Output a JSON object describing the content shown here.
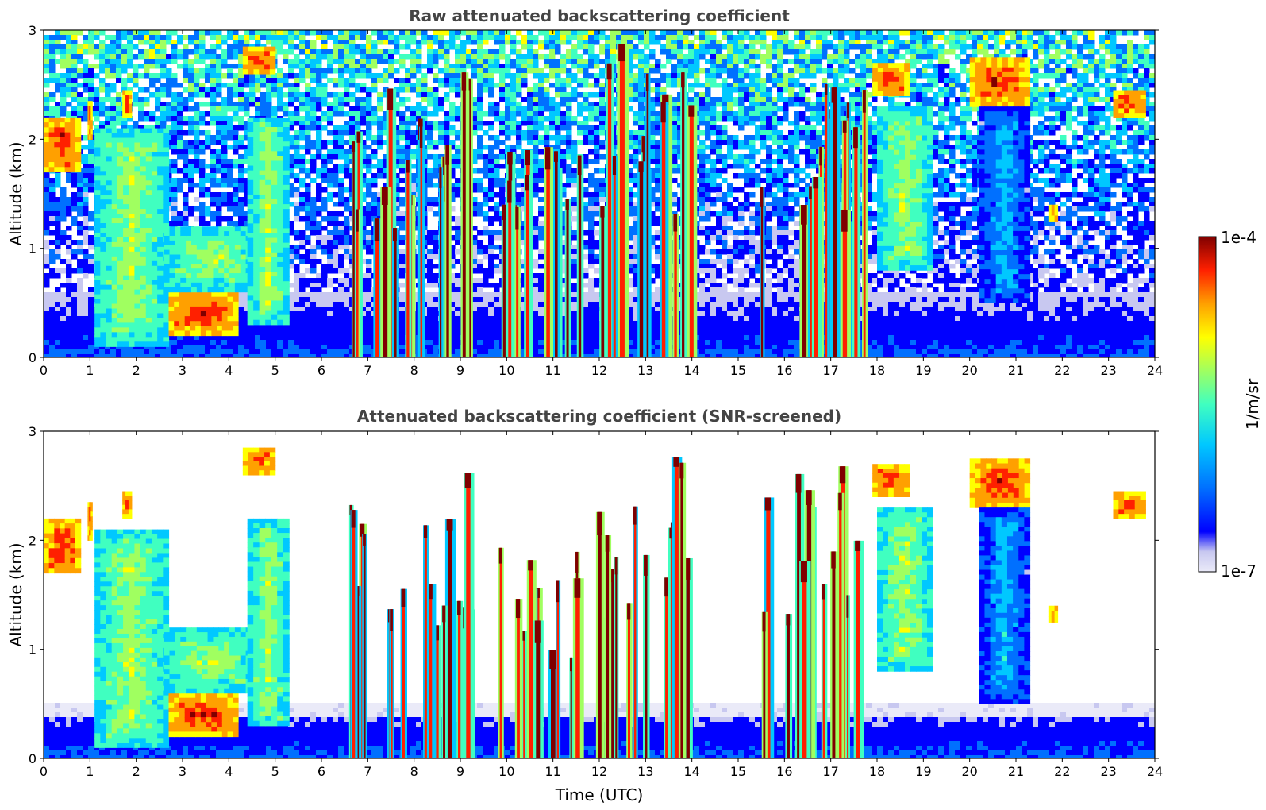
{
  "chart_data": [
    {
      "type": "heatmap",
      "title": "Raw attenuated backscattering coefficient",
      "xlabel": "",
      "ylabel": "Altitude (km)",
      "xlim": [
        0,
        24
      ],
      "ylim": [
        0,
        3
      ],
      "xticks": [
        "0",
        "1",
        "2",
        "3",
        "4",
        "5",
        "6",
        "7",
        "8",
        "9",
        "10",
        "11",
        "12",
        "13",
        "14",
        "15",
        "16",
        "17",
        "18",
        "19",
        "20",
        "21",
        "22",
        "23",
        "24"
      ],
      "yticks": [
        "0",
        "1",
        "2",
        "3"
      ],
      "colormap": "jet",
      "log_color_scale": true,
      "noise": "high",
      "boundary_layer_top_km": 0.6,
      "features": [
        {
          "x": [
            0.0,
            0.8
          ],
          "y": [
            1.7,
            2.2
          ],
          "level": "high",
          "kind": "layer"
        },
        {
          "x": [
            0.95,
            1.05
          ],
          "y": [
            2.0,
            2.35
          ],
          "level": "high",
          "kind": "layer"
        },
        {
          "x": [
            1.1,
            2.7
          ],
          "y": [
            0.1,
            2.1
          ],
          "level": "mid",
          "kind": "precip"
        },
        {
          "x": [
            1.7,
            1.9
          ],
          "y": [
            2.2,
            2.45
          ],
          "level": "high",
          "kind": "layer"
        },
        {
          "x": [
            2.7,
            4.2
          ],
          "y": [
            0.2,
            0.6
          ],
          "level": "high",
          "kind": "layer"
        },
        {
          "x": [
            2.6,
            4.6
          ],
          "y": [
            0.6,
            1.2
          ],
          "level": "mid",
          "kind": "layer"
        },
        {
          "x": [
            4.3,
            5.0
          ],
          "y": [
            2.6,
            2.85
          ],
          "level": "high",
          "kind": "layer"
        },
        {
          "x": [
            4.4,
            5.3
          ],
          "y": [
            0.3,
            2.2
          ],
          "level": "mid",
          "kind": "precip"
        },
        {
          "x": [
            6.5,
            7.6
          ],
          "y": [
            0.0,
            2.5
          ],
          "level": "high",
          "kind": "streaks"
        },
        {
          "x": [
            7.7,
            9.2
          ],
          "y": [
            0.0,
            2.8
          ],
          "level": "high",
          "kind": "streaks"
        },
        {
          "x": [
            9.8,
            11.6
          ],
          "y": [
            0.0,
            2.2
          ],
          "level": "high",
          "kind": "streaks"
        },
        {
          "x": [
            11.9,
            14.0
          ],
          "y": [
            0.0,
            2.9
          ],
          "level": "high",
          "kind": "streaks"
        },
        {
          "x": [
            15.4,
            17.7
          ],
          "y": [
            0.0,
            2.7
          ],
          "level": "high",
          "kind": "streaks"
        },
        {
          "x": [
            17.9,
            18.7
          ],
          "y": [
            2.4,
            2.7
          ],
          "level": "high",
          "kind": "layer"
        },
        {
          "x": [
            18.0,
            19.2
          ],
          "y": [
            0.8,
            2.3
          ],
          "level": "mid",
          "kind": "precip"
        },
        {
          "x": [
            20.0,
            21.3
          ],
          "y": [
            2.3,
            2.75
          ],
          "level": "high",
          "kind": "layer"
        },
        {
          "x": [
            20.2,
            21.3
          ],
          "y": [
            0.5,
            2.3
          ],
          "level": "low",
          "kind": "precip"
        },
        {
          "x": [
            21.7,
            21.9
          ],
          "y": [
            1.25,
            1.4
          ],
          "level": "high",
          "kind": "layer"
        },
        {
          "x": [
            23.1,
            23.8
          ],
          "y": [
            2.2,
            2.45
          ],
          "level": "high",
          "kind": "layer"
        }
      ]
    },
    {
      "type": "heatmap",
      "title": "Attenuated backscattering coefficient (SNR-screened)",
      "xlabel": "Time (UTC)",
      "ylabel": "Altitude (km)",
      "xlim": [
        0,
        24
      ],
      "ylim": [
        0,
        3
      ],
      "xticks": [
        "0",
        "1",
        "2",
        "3",
        "4",
        "5",
        "6",
        "7",
        "8",
        "9",
        "10",
        "11",
        "12",
        "13",
        "14",
        "15",
        "16",
        "17",
        "18",
        "19",
        "20",
        "21",
        "22",
        "23",
        "24"
      ],
      "yticks": [
        "0",
        "1",
        "2",
        "3"
      ],
      "colormap": "jet",
      "log_color_scale": true,
      "noise": "screened",
      "boundary_layer_top_km": 0.5,
      "features": [
        {
          "x": [
            0.0,
            0.8
          ],
          "y": [
            1.7,
            2.2
          ],
          "level": "high",
          "kind": "layer"
        },
        {
          "x": [
            0.95,
            1.05
          ],
          "y": [
            2.0,
            2.35
          ],
          "level": "high",
          "kind": "layer"
        },
        {
          "x": [
            1.1,
            2.7
          ],
          "y": [
            0.1,
            2.1
          ],
          "level": "mid",
          "kind": "precip"
        },
        {
          "x": [
            1.7,
            1.9
          ],
          "y": [
            2.2,
            2.45
          ],
          "level": "high",
          "kind": "layer"
        },
        {
          "x": [
            2.7,
            4.2
          ],
          "y": [
            0.2,
            0.6
          ],
          "level": "high",
          "kind": "layer"
        },
        {
          "x": [
            2.6,
            4.6
          ],
          "y": [
            0.6,
            1.2
          ],
          "level": "mid",
          "kind": "layer"
        },
        {
          "x": [
            4.3,
            5.0
          ],
          "y": [
            2.6,
            2.85
          ],
          "level": "high",
          "kind": "layer"
        },
        {
          "x": [
            4.4,
            5.3
          ],
          "y": [
            0.3,
            2.2
          ],
          "level": "mid",
          "kind": "precip"
        },
        {
          "x": [
            6.5,
            7.6
          ],
          "y": [
            0.0,
            2.5
          ],
          "level": "high",
          "kind": "streaks"
        },
        {
          "x": [
            7.7,
            9.2
          ],
          "y": [
            0.0,
            2.8
          ],
          "level": "high",
          "kind": "streaks"
        },
        {
          "x": [
            9.8,
            11.6
          ],
          "y": [
            0.0,
            2.2
          ],
          "level": "high",
          "kind": "streaks"
        },
        {
          "x": [
            11.9,
            14.0
          ],
          "y": [
            0.0,
            2.9
          ],
          "level": "high",
          "kind": "streaks"
        },
        {
          "x": [
            15.4,
            17.7
          ],
          "y": [
            0.0,
            2.7
          ],
          "level": "high",
          "kind": "streaks"
        },
        {
          "x": [
            17.9,
            18.7
          ],
          "y": [
            2.4,
            2.7
          ],
          "level": "high",
          "kind": "layer"
        },
        {
          "x": [
            18.0,
            19.2
          ],
          "y": [
            0.8,
            2.3
          ],
          "level": "mid",
          "kind": "precip"
        },
        {
          "x": [
            20.0,
            21.3
          ],
          "y": [
            2.3,
            2.75
          ],
          "level": "high",
          "kind": "layer"
        },
        {
          "x": [
            20.2,
            21.3
          ],
          "y": [
            0.5,
            2.3
          ],
          "level": "low",
          "kind": "precip"
        },
        {
          "x": [
            21.7,
            21.9
          ],
          "y": [
            1.25,
            1.4
          ],
          "level": "high",
          "kind": "layer"
        },
        {
          "x": [
            23.1,
            23.8
          ],
          "y": [
            2.2,
            2.45
          ],
          "level": "high",
          "kind": "layer"
        }
      ]
    }
  ],
  "colorbar": {
    "label": "1/m/sr",
    "max_label": "1e-4",
    "min_label": "1e-7",
    "colors": [
      "#eaeaf8",
      "#c8c8f0",
      "#0000ff",
      "#0070ff",
      "#00c8ff",
      "#40ffc0",
      "#a0ff60",
      "#ffff00",
      "#ffa000",
      "#ff2000",
      "#800000"
    ]
  }
}
